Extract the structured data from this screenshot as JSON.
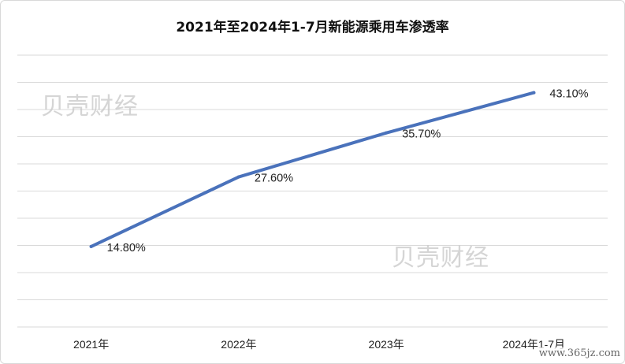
{
  "chart_data": {
    "type": "line",
    "title": "2021年至2024年1-7月新能源乘用车渗透率",
    "categories": [
      "2021年",
      "2022年",
      "2023年",
      "2024年1-7月"
    ],
    "series": [
      {
        "values": [
          14.8,
          27.6,
          35.7,
          43.1
        ]
      }
    ],
    "data_labels": [
      "14.80%",
      "27.60%",
      "35.70%",
      "43.10%"
    ],
    "ylim": [
      0,
      50
    ],
    "grid": true,
    "legend": "none",
    "colors": {
      "line": "#4a72bb",
      "grid": "#d9d9d9"
    }
  },
  "watermarks": [
    "贝壳财经",
    "贝壳财经"
  ],
  "corner_mark": "www.365jz.com"
}
